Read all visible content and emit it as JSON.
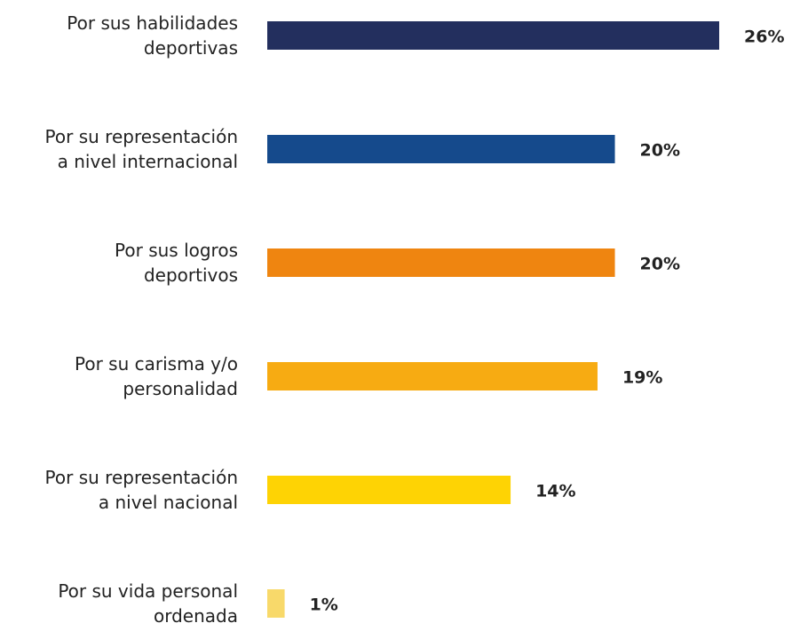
{
  "chart_data": {
    "type": "bar",
    "categories": [
      "Por sus habilidades\ndeportivas",
      "Por su representación\na nivel internacional",
      "Por sus logros\ndeportivos",
      "Por su carisma y/o\npersonalidad",
      "Por su representación\na nivel nacional",
      "Por su vida personal\nordenada"
    ],
    "values": [
      26,
      20,
      20,
      19,
      14,
      1
    ],
    "value_labels": [
      "26%",
      "20%",
      "20%",
      "19%",
      "14%",
      "1%"
    ],
    "colors": [
      "#232f5e",
      "#154a8c",
      "#ef8510",
      "#f7ab12",
      "#fed304",
      "#f8d96a"
    ]
  }
}
